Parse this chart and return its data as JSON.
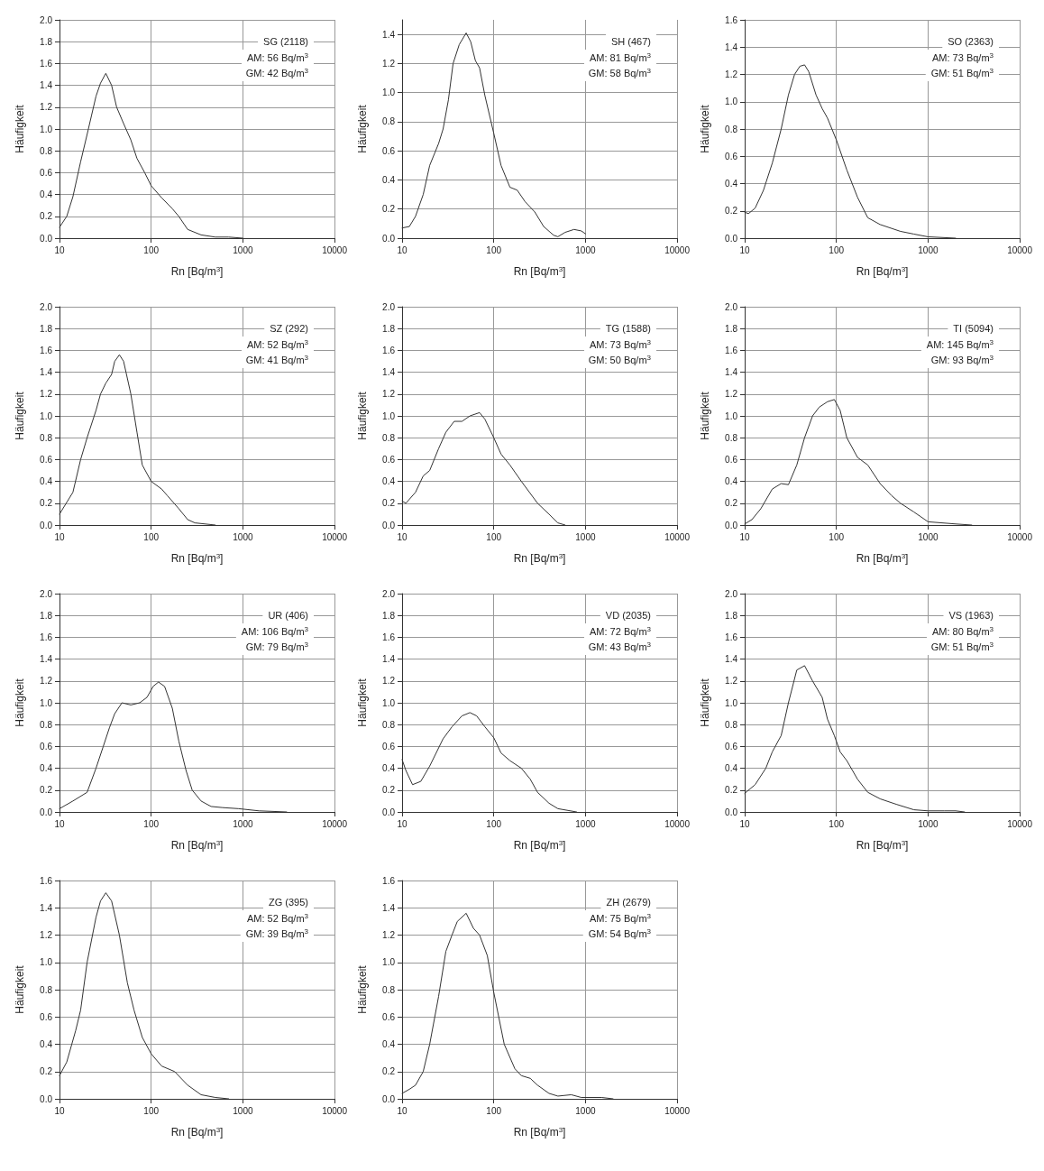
{
  "chart_data": [
    {
      "type": "line",
      "ylabel": "Häufigkeit",
      "xlabel": "Rn [Bq/m$^{3}$]",
      "log": "x",
      "grid": true,
      "marker": "none",
      "line_style": "solid",
      "annotations": [
        "SG (2118)",
        "AM: 56 Bq/m$^{3}$",
        "GM: 42 Bq/m$^{3}$"
      ],
      "xlim": [
        10,
        10000
      ],
      "xticks": [
        10,
        100,
        1000,
        10000
      ],
      "ylim": [
        0,
        2
      ],
      "yticks": [
        {
          "value": 0,
          "label": "0.0"
        },
        0.2,
        0.4,
        0.6,
        0.8,
        {
          "value": 1,
          "label": "1.0"
        },
        1.2,
        1.4,
        1.6,
        1.8,
        {
          "value": 2,
          "label": "2.0"
        }
      ],
      "series": [
        {
          "color": "#333333",
          "x": [
            10,
            12,
            14,
            17,
            20,
            25,
            28,
            32,
            37,
            42,
            50,
            60,
            70,
            85,
            100,
            130,
            170,
            200,
            250,
            350,
            500,
            700,
            1000
          ],
          "values": [
            0.1,
            0.2,
            0.38,
            0.7,
            0.95,
            1.3,
            1.42,
            1.51,
            1.4,
            1.2,
            1.05,
            0.9,
            0.73,
            0.6,
            0.48,
            0.37,
            0.27,
            0.2,
            0.08,
            0.03,
            0.01,
            0.01,
            0
          ]
        }
      ]
    },
    {
      "type": "line",
      "ylabel": "Häufigkeit",
      "xlabel": "Rn [Bq/m$^{3}$]",
      "log": "x",
      "grid": true,
      "marker": "none",
      "line_style": "solid",
      "annotations": [
        "SH (467)",
        "AM: 81 Bq/m$^{3}$",
        "GM: 58 Bq/m$^{3}$"
      ],
      "xlim": [
        10,
        10000
      ],
      "xticks": [
        10,
        100,
        1000,
        10000
      ],
      "ylim": [
        0,
        1.5
      ],
      "yticks": [
        {
          "value": 0,
          "label": "0.0"
        },
        0.2,
        0.4,
        0.6,
        0.8,
        {
          "value": 1,
          "label": "1.0"
        },
        1.2,
        1.4
      ],
      "series": [
        {
          "color": "#333333",
          "x": [
            10,
            12,
            14,
            17,
            20,
            25,
            28,
            32,
            36,
            42,
            50,
            56,
            63,
            70,
            80,
            100,
            120,
            150,
            180,
            220,
            280,
            350,
            450,
            500,
            600,
            750,
            900,
            1000
          ],
          "values": [
            0.07,
            0.08,
            0.15,
            0.3,
            0.5,
            0.65,
            0.75,
            0.95,
            1.2,
            1.33,
            1.41,
            1.35,
            1.22,
            1.17,
            0.98,
            0.72,
            0.5,
            0.35,
            0.33,
            0.25,
            0.18,
            0.08,
            0.02,
            0.01,
            0.04,
            0.06,
            0.05,
            0.03
          ]
        }
      ]
    },
    {
      "type": "line",
      "ylabel": "Häufigkeit",
      "xlabel": "Rn [Bq/m$^{3}$]",
      "log": "x",
      "grid": true,
      "marker": "none",
      "line_style": "solid",
      "annotations": [
        "SO (2363)",
        "AM: 73 Bq/m$^{3}$",
        "GM: 51 Bq/m$^{3}$"
      ],
      "xlim": [
        10,
        10000
      ],
      "xticks": [
        10,
        100,
        1000,
        10000
      ],
      "ylim": [
        0,
        1.6
      ],
      "yticks": [
        {
          "value": 0,
          "label": "0.0"
        },
        0.2,
        0.4,
        0.6,
        0.8,
        {
          "value": 1,
          "label": "1.0"
        },
        1.2,
        1.4,
        1.6
      ],
      "series": [
        {
          "color": "#333333",
          "x": [
            10,
            11,
            13,
            16,
            20,
            25,
            30,
            35,
            40,
            45,
            50,
            60,
            70,
            80,
            100,
            130,
            170,
            220,
            300,
            500,
            700,
            1000,
            2000
          ],
          "values": [
            0.19,
            0.18,
            0.22,
            0.35,
            0.55,
            0.8,
            1.05,
            1.2,
            1.26,
            1.27,
            1.22,
            1.05,
            0.95,
            0.88,
            0.72,
            0.5,
            0.3,
            0.15,
            0.1,
            0.05,
            0.03,
            0.01,
            0
          ]
        }
      ]
    },
    {
      "type": "line",
      "ylabel": "Häufigkeit",
      "xlabel": "Rn [Bq/m$^{3}$]",
      "log": "x",
      "grid": true,
      "marker": "none",
      "line_style": "solid",
      "annotations": [
        "SZ (292)",
        "AM: 52 Bq/m$^{3}$",
        "GM: 41 Bq/m$^{3}$"
      ],
      "xlim": [
        10,
        10000
      ],
      "xticks": [
        10,
        100,
        1000,
        10000
      ],
      "ylim": [
        0,
        2
      ],
      "yticks": [
        {
          "value": 0,
          "label": "0.0"
        },
        0.2,
        0.4,
        0.6,
        0.8,
        {
          "value": 1,
          "label": "1.0"
        },
        1.2,
        1.4,
        1.6,
        1.8,
        {
          "value": 2,
          "label": "2.0"
        }
      ],
      "series": [
        {
          "color": "#333333",
          "x": [
            10,
            14,
            17,
            20,
            25,
            28,
            32,
            37,
            40,
            45,
            50,
            60,
            70,
            80,
            100,
            130,
            150,
            200,
            250,
            300,
            500
          ],
          "values": [
            0.1,
            0.3,
            0.6,
            0.8,
            1.05,
            1.2,
            1.3,
            1.38,
            1.5,
            1.56,
            1.5,
            1.2,
            0.85,
            0.55,
            0.4,
            0.33,
            0.27,
            0.15,
            0.05,
            0.02,
            0
          ]
        }
      ]
    },
    {
      "type": "line",
      "ylabel": "Häufigkeit",
      "xlabel": "Rn [Bq/m$^{3}$]",
      "log": "x",
      "grid": true,
      "marker": "none",
      "line_style": "solid",
      "annotations": [
        "TG (1588)",
        "AM: 73 Bq/m$^{3}$",
        "GM: 50 Bq/m$^{3}$"
      ],
      "xlim": [
        10,
        10000
      ],
      "xticks": [
        10,
        100,
        1000,
        10000
      ],
      "ylim": [
        0,
        2
      ],
      "yticks": [
        {
          "value": 0,
          "label": "0.0"
        },
        0.2,
        0.4,
        0.6,
        0.8,
        {
          "value": 1,
          "label": "1.0"
        },
        1.2,
        1.4,
        1.6,
        1.8,
        {
          "value": 2,
          "label": "2.0"
        }
      ],
      "series": [
        {
          "color": "#333333",
          "x": [
            10,
            11,
            14,
            17,
            20,
            25,
            30,
            37,
            45,
            55,
            70,
            80,
            100,
            120,
            150,
            200,
            300,
            400,
            500,
            600
          ],
          "values": [
            0.22,
            0.2,
            0.3,
            0.45,
            0.5,
            0.7,
            0.85,
            0.95,
            0.95,
            1.0,
            1.03,
            0.97,
            0.8,
            0.65,
            0.55,
            0.4,
            0.2,
            0.1,
            0.02,
            0
          ]
        }
      ]
    },
    {
      "type": "line",
      "ylabel": "Häufigkeit",
      "xlabel": "Rn [Bq/m$^{3}$]",
      "log": "x",
      "grid": true,
      "marker": "none",
      "line_style": "solid",
      "annotations": [
        "TI (5094)",
        "AM: 145 Bq/m$^{3}$",
        "GM: 93 Bq/m$^{3}$"
      ],
      "xlim": [
        10,
        10000
      ],
      "xticks": [
        10,
        100,
        1000,
        10000
      ],
      "ylim": [
        0,
        2
      ],
      "yticks": [
        {
          "value": 0,
          "label": "0.0"
        },
        0.2,
        0.4,
        0.6,
        0.8,
        {
          "value": 1,
          "label": "1.0"
        },
        1.2,
        1.4,
        1.6,
        1.8,
        {
          "value": 2,
          "label": "2.0"
        }
      ],
      "series": [
        {
          "color": "#333333",
          "x": [
            10,
            12,
            15,
            20,
            25,
            30,
            37,
            45,
            55,
            65,
            80,
            95,
            110,
            130,
            170,
            220,
            300,
            400,
            500,
            700,
            1000,
            2000,
            3000
          ],
          "values": [
            0.01,
            0.05,
            0.15,
            0.33,
            0.38,
            0.37,
            0.55,
            0.8,
            1.0,
            1.08,
            1.13,
            1.15,
            1.05,
            0.8,
            0.62,
            0.55,
            0.38,
            0.27,
            0.2,
            0.12,
            0.03,
            0.01,
            0
          ]
        }
      ]
    },
    {
      "type": "line",
      "ylabel": "Häufigkeit",
      "xlabel": "Rn [Bq/m$^{3}$]",
      "log": "x",
      "grid": true,
      "marker": "none",
      "line_style": "solid",
      "annotations": [
        "UR (406)",
        "AM: 106 Bq/m$^{3}$",
        "GM: 79 Bq/m$^{3}$"
      ],
      "xlim": [
        10,
        10000
      ],
      "xticks": [
        10,
        100,
        1000,
        10000
      ],
      "ylim": [
        0,
        2
      ],
      "yticks": [
        {
          "value": 0,
          "label": "0.0"
        },
        0.2,
        0.4,
        0.6,
        0.8,
        {
          "value": 1,
          "label": "1.0"
        },
        1.2,
        1.4,
        1.6,
        1.8,
        {
          "value": 2,
          "label": "2.0"
        }
      ],
      "series": [
        {
          "color": "#333333",
          "x": [
            10,
            14,
            20,
            25,
            30,
            35,
            40,
            48,
            60,
            75,
            90,
            105,
            120,
            140,
            170,
            200,
            240,
            280,
            350,
            450,
            600,
            900,
            1500,
            3000
          ],
          "values": [
            0.03,
            0.1,
            0.18,
            0.4,
            0.6,
            0.77,
            0.9,
            1.0,
            0.98,
            1.0,
            1.05,
            1.15,
            1.19,
            1.15,
            0.95,
            0.65,
            0.38,
            0.2,
            0.1,
            0.05,
            0.04,
            0.03,
            0.01,
            0
          ]
        }
      ]
    },
    {
      "type": "line",
      "ylabel": "Häufigkeit",
      "xlabel": "Rn [Bq/m$^{3}$]",
      "log": "x",
      "grid": true,
      "marker": "none",
      "line_style": "solid",
      "annotations": [
        "VD (2035)",
        "AM: 72 Bq/m$^{3}$",
        "GM: 43 Bq/m$^{3}$"
      ],
      "xlim": [
        10,
        10000
      ],
      "xticks": [
        10,
        100,
        1000,
        10000
      ],
      "ylim": [
        0,
        2
      ],
      "yticks": [
        {
          "value": 0,
          "label": "0.0"
        },
        0.2,
        0.4,
        0.6,
        0.8,
        {
          "value": 1,
          "label": "1.0"
        },
        1.2,
        1.4,
        1.6,
        1.8,
        {
          "value": 2,
          "label": "2.0"
        }
      ],
      "series": [
        {
          "color": "#333333",
          "x": [
            10,
            11,
            13,
            16,
            20,
            28,
            35,
            45,
            55,
            65,
            80,
            100,
            120,
            150,
            200,
            250,
            300,
            400,
            500,
            800
          ],
          "values": [
            0.48,
            0.38,
            0.25,
            0.28,
            0.42,
            0.67,
            0.78,
            0.88,
            0.91,
            0.88,
            0.78,
            0.68,
            0.54,
            0.47,
            0.4,
            0.3,
            0.18,
            0.08,
            0.03,
            0
          ]
        }
      ]
    },
    {
      "type": "line",
      "ylabel": "Häufigkeit",
      "xlabel": "Rn [Bq/m$^{3}$]",
      "log": "x",
      "grid": true,
      "marker": "none",
      "line_style": "solid",
      "annotations": [
        "VS (1963)",
        "AM: 80 Bq/m$^{3}$",
        "GM: 51 Bq/m$^{3}$"
      ],
      "xlim": [
        10,
        10000
      ],
      "xticks": [
        10,
        100,
        1000,
        10000
      ],
      "ylim": [
        0,
        2
      ],
      "yticks": [
        {
          "value": 0,
          "label": "0.0"
        },
        0.2,
        0.4,
        0.6,
        0.8,
        {
          "value": 1,
          "label": "1.0"
        },
        1.2,
        1.4,
        1.6,
        1.8,
        {
          "value": 2,
          "label": "2.0"
        }
      ],
      "series": [
        {
          "color": "#333333",
          "x": [
            10,
            13,
            17,
            20,
            25,
            30,
            37,
            45,
            55,
            70,
            80,
            95,
            110,
            130,
            170,
            220,
            300,
            450,
            700,
            1000,
            1500,
            2000,
            2500
          ],
          "values": [
            0.17,
            0.25,
            0.4,
            0.55,
            0.7,
            1.0,
            1.3,
            1.34,
            1.2,
            1.05,
            0.85,
            0.7,
            0.55,
            0.47,
            0.3,
            0.18,
            0.12,
            0.07,
            0.02,
            0.01,
            0.01,
            0.01,
            0
          ]
        }
      ]
    },
    {
      "type": "line",
      "ylabel": "Häufigkeit",
      "xlabel": "Rn [Bq/m$^{3}$]",
      "log": "x",
      "grid": true,
      "marker": "none",
      "line_style": "solid",
      "annotations": [
        "ZG (395)",
        "AM: 52 Bq/m$^{3}$",
        "GM: 39 Bq/m$^{3}$"
      ],
      "xlim": [
        10,
        10000
      ],
      "xticks": [
        10,
        100,
        1000,
        10000
      ],
      "ylim": [
        0,
        1.6
      ],
      "yticks": [
        {
          "value": 0,
          "label": "0.0"
        },
        0.2,
        0.4,
        0.6,
        0.8,
        {
          "value": 1,
          "label": "1.0"
        },
        1.2,
        1.4,
        1.6
      ],
      "series": [
        {
          "color": "#333333",
          "x": [
            10,
            12,
            15,
            17,
            20,
            25,
            28,
            32,
            37,
            45,
            55,
            65,
            80,
            100,
            130,
            180,
            250,
            350,
            500,
            700
          ],
          "values": [
            0.17,
            0.27,
            0.5,
            0.65,
            1.0,
            1.33,
            1.45,
            1.51,
            1.45,
            1.2,
            0.85,
            0.65,
            0.45,
            0.33,
            0.24,
            0.2,
            0.1,
            0.03,
            0.01,
            0
          ]
        }
      ]
    },
    {
      "type": "line",
      "ylabel": "Häufigkeit",
      "xlabel": "Rn [Bq/m$^{3}$]",
      "log": "x",
      "grid": true,
      "marker": "none",
      "line_style": "solid",
      "annotations": [
        "ZH (2679)",
        "AM: 75 Bq/m$^{3}$",
        "GM: 54 Bq/m$^{3}$"
      ],
      "xlim": [
        10,
        10000
      ],
      "xticks": [
        10,
        100,
        1000,
        10000
      ],
      "ylim": [
        0,
        1.6
      ],
      "yticks": [
        {
          "value": 0,
          "label": "0.0"
        },
        0.2,
        0.4,
        0.6,
        0.8,
        {
          "value": 1,
          "label": "1.0"
        },
        1.2,
        1.4,
        1.6
      ],
      "series": [
        {
          "color": "#333333",
          "x": [
            10,
            12,
            14,
            17,
            20,
            25,
            30,
            35,
            40,
            50,
            60,
            70,
            85,
            100,
            130,
            170,
            200,
            250,
            300,
            400,
            500,
            700,
            900,
            1500,
            2000
          ],
          "values": [
            0.04,
            0.07,
            0.1,
            0.2,
            0.4,
            0.75,
            1.08,
            1.2,
            1.3,
            1.36,
            1.25,
            1.2,
            1.05,
            0.78,
            0.4,
            0.22,
            0.17,
            0.15,
            0.1,
            0.04,
            0.02,
            0.03,
            0.01,
            0.01,
            0
          ]
        }
      ]
    }
  ]
}
